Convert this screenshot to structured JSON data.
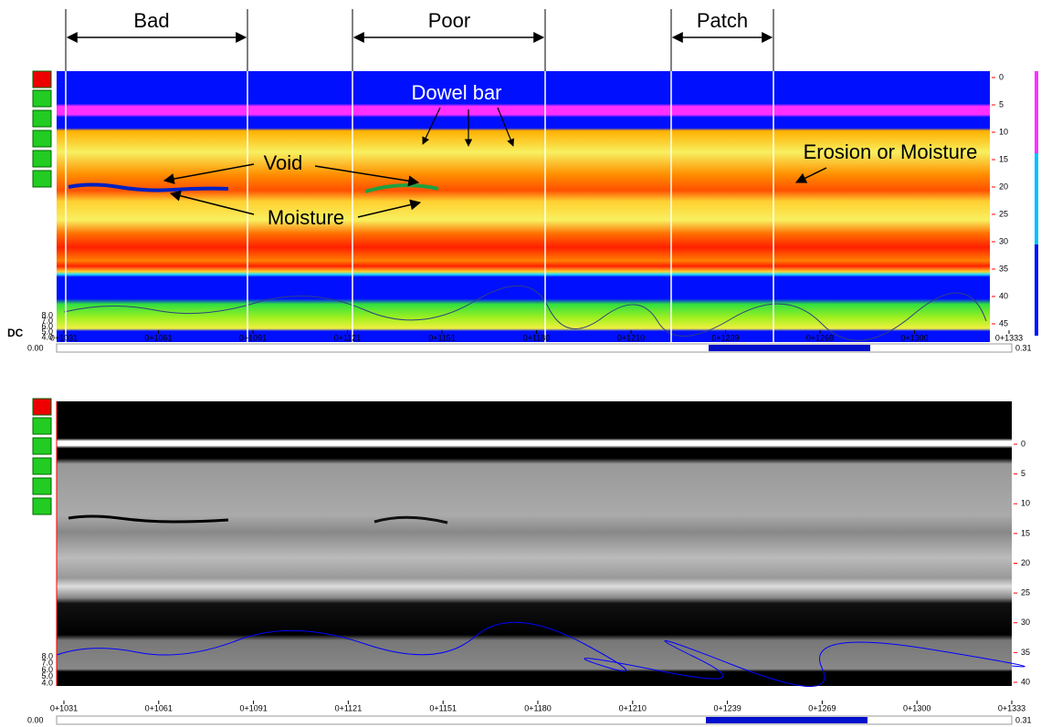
{
  "annotations": {
    "sections": [
      "Bad",
      "Poor",
      "Patch"
    ],
    "dowel_bar": "Dowel bar",
    "void": "Void",
    "moisture": "Moisture",
    "erosion": "Erosion or Moisture",
    "dc": "DC"
  },
  "panels": [
    {
      "distance_labels": [
        "0+1031",
        "0+1061",
        "0+1091",
        "0+1121",
        "0+1151",
        "0+1180",
        "0+1210",
        "0+1239",
        "0+1269",
        "0+1300",
        "0+1333"
      ],
      "depth_labels": [
        "0",
        "5",
        "10",
        "15",
        "20",
        "25",
        "30",
        "35",
        "40",
        "45"
      ],
      "dc_labels": [
        "8.0",
        "7.0",
        "6.0",
        "5.0",
        "4.0"
      ],
      "scroll_min": "0.00",
      "scroll_max": "0.31"
    },
    {
      "distance_labels": [
        "0+1031",
        "0+1061",
        "0+1091",
        "0+1121",
        "0+1151",
        "0+1180",
        "0+1210",
        "0+1239",
        "0+1269",
        "0+1300",
        "0+1333"
      ],
      "depth_labels": [
        "0",
        "5",
        "10",
        "15",
        "20",
        "25",
        "30",
        "35",
        "40"
      ],
      "dc_labels": [
        "8.0",
        "7.0",
        "6.0",
        "5.0",
        "4.0"
      ],
      "scroll_min": "0.00",
      "scroll_max": "0.31"
    }
  ]
}
